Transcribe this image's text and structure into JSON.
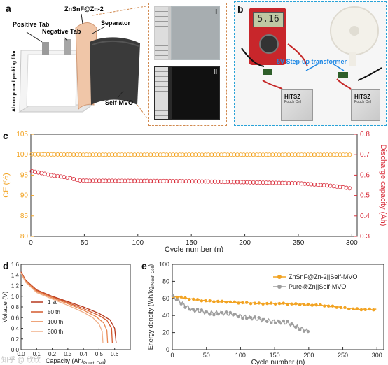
{
  "panel_labels": {
    "a": "a",
    "b": "b",
    "c": "c",
    "d": "d",
    "e": "e"
  },
  "panel_a": {
    "labels": {
      "zn_anode": "ZnSnF@Zn-2",
      "positive_tab": "Positive Tab",
      "negative_tab": "Negative Tab",
      "separator": "Separator",
      "packing": "Al compound packing film",
      "cathode": "Self-MVO"
    },
    "insets": {
      "top": "I",
      "bottom": "II"
    }
  },
  "panel_b": {
    "meter_reading": "5.16",
    "transformer_label": "5V Step-up transformer",
    "cell_left": {
      "title": "HITSZ",
      "subtitle": "Pouch Cell"
    },
    "cell_right": {
      "title": "HITSZ",
      "subtitle": "Pouch Cell"
    }
  },
  "chart_data": [
    {
      "panel": "c",
      "type": "scatter",
      "xlabel": "Cycle number (n)",
      "ylabel_left": "CE (%)",
      "ylabel_right": "Discharge capacity (Ah)",
      "xlim": [
        0,
        305
      ],
      "ylim_left": [
        80,
        105
      ],
      "ylim_right": [
        0.3,
        0.8
      ],
      "xticks": [
        0,
        50,
        100,
        150,
        200,
        250,
        300
      ],
      "yticks_left": [
        80,
        85,
        90,
        95,
        100,
        105
      ],
      "yticks_right": [
        0.3,
        0.4,
        0.5,
        0.6,
        0.7,
        0.8
      ],
      "colors": {
        "ce": "#f2a322",
        "capacity": "#d9303d"
      },
      "series": [
        {
          "axis": "left",
          "points": [
            [
              0,
              100.1
            ],
            [
              50,
              100.0
            ],
            [
              100,
              100.0
            ],
            [
              150,
              100.0
            ],
            [
              200,
              100.0
            ],
            [
              250,
              100.0
            ],
            [
              300,
              100.0
            ]
          ]
        },
        {
          "axis": "right",
          "points": [
            [
              0,
              0.62
            ],
            [
              10,
              0.61
            ],
            [
              20,
              0.598
            ],
            [
              30,
              0.592
            ],
            [
              45,
              0.575
            ],
            [
              50,
              0.573
            ],
            [
              100,
              0.572
            ],
            [
              150,
              0.57
            ],
            [
              200,
              0.565
            ],
            [
              250,
              0.56
            ],
            [
              280,
              0.548
            ],
            [
              300,
              0.534
            ]
          ]
        }
      ]
    },
    {
      "panel": "d",
      "type": "line",
      "xlabel_main": "Capacity (Ah/",
      "xlabel_sub": "Pouch Cell",
      "xlabel_end": ")",
      "ylabel": "Voltage (V)",
      "xlim": [
        0,
        0.7
      ],
      "ylim": [
        0,
        1.6
      ],
      "xticks": [
        0.0,
        0.1,
        0.2,
        0.3,
        0.4,
        0.5,
        0.6
      ],
      "yticks": [
        0.0,
        0.2,
        0.4,
        0.6,
        0.8,
        1.0,
        1.2,
        1.4,
        1.6
      ],
      "series": [
        {
          "name": "1 st",
          "color": "#b5381e",
          "points": [
            [
              0,
              1.46
            ],
            [
              0.03,
              1.3
            ],
            [
              0.1,
              1.12
            ],
            [
              0.2,
              1.0
            ],
            [
              0.3,
              0.9
            ],
            [
              0.4,
              0.8
            ],
            [
              0.5,
              0.68
            ],
            [
              0.57,
              0.56
            ],
            [
              0.6,
              0.4
            ],
            [
              0.61,
              0.12
            ]
          ]
        },
        {
          "name": "50 th",
          "color": "#d35a2f",
          "points": [
            [
              0,
              1.45
            ],
            [
              0.03,
              1.29
            ],
            [
              0.1,
              1.11
            ],
            [
              0.2,
              0.99
            ],
            [
              0.3,
              0.88
            ],
            [
              0.4,
              0.77
            ],
            [
              0.5,
              0.64
            ],
            [
              0.55,
              0.55
            ],
            [
              0.58,
              0.4
            ],
            [
              0.585,
              0.12
            ]
          ]
        },
        {
          "name": "100 th",
          "color": "#e8864f",
          "points": [
            [
              0,
              1.44
            ],
            [
              0.03,
              1.28
            ],
            [
              0.1,
              1.09
            ],
            [
              0.2,
              0.97
            ],
            [
              0.3,
              0.86
            ],
            [
              0.4,
              0.74
            ],
            [
              0.48,
              0.62
            ],
            [
              0.53,
              0.5
            ],
            [
              0.55,
              0.36
            ],
            [
              0.555,
              0.12
            ]
          ]
        },
        {
          "name": "300 th",
          "color": "#f0b08a",
          "points": [
            [
              0,
              1.43
            ],
            [
              0.03,
              1.26
            ],
            [
              0.1,
              1.07
            ],
            [
              0.2,
              0.95
            ],
            [
              0.3,
              0.83
            ],
            [
              0.4,
              0.7
            ],
            [
              0.46,
              0.6
            ],
            [
              0.5,
              0.48
            ],
            [
              0.52,
              0.34
            ],
            [
              0.525,
              0.12
            ]
          ]
        }
      ]
    },
    {
      "panel": "e",
      "type": "line",
      "xlabel": "Cycle number (n)",
      "ylabel_main": "Energy density (Wh/kg",
      "ylabel_sub": "Pouch Cell",
      "ylabel_end": ")",
      "xlim": [
        0,
        310
      ],
      "ylim": [
        0,
        100
      ],
      "xticks": [
        0,
        50,
        100,
        150,
        200,
        250,
        300
      ],
      "yticks": [
        0,
        20,
        40,
        60,
        80,
        100
      ],
      "series": [
        {
          "name": "ZnSnF@Zn-2||Self-MVO",
          "color": "#f2a322",
          "points": [
            [
              0,
              62
            ],
            [
              10,
              62
            ],
            [
              20,
              60
            ],
            [
              30,
              59
            ],
            [
              50,
              57
            ],
            [
              80,
              56
            ],
            [
              100,
              55
            ],
            [
              130,
              54
            ],
            [
              160,
              54
            ],
            [
              190,
              53
            ],
            [
              220,
              52
            ],
            [
              240,
              50
            ],
            [
              260,
              48
            ],
            [
              280,
              47
            ],
            [
              300,
              47
            ]
          ]
        },
        {
          "name": "Pure@Zn||Self-MVO",
          "color": "#9e9e9e",
          "points": [
            [
              0,
              62
            ],
            [
              10,
              57
            ],
            [
              20,
              51
            ],
            [
              30,
              46
            ],
            [
              40,
              45
            ],
            [
              55,
              43
            ],
            [
              70,
              43
            ],
            [
              90,
              41
            ],
            [
              110,
              38
            ],
            [
              130,
              35
            ],
            [
              150,
              33
            ],
            [
              170,
              31
            ],
            [
              185,
              26
            ],
            [
              200,
              21
            ]
          ]
        }
      ]
    }
  ],
  "watermark": "知乎 @ 欣欣"
}
